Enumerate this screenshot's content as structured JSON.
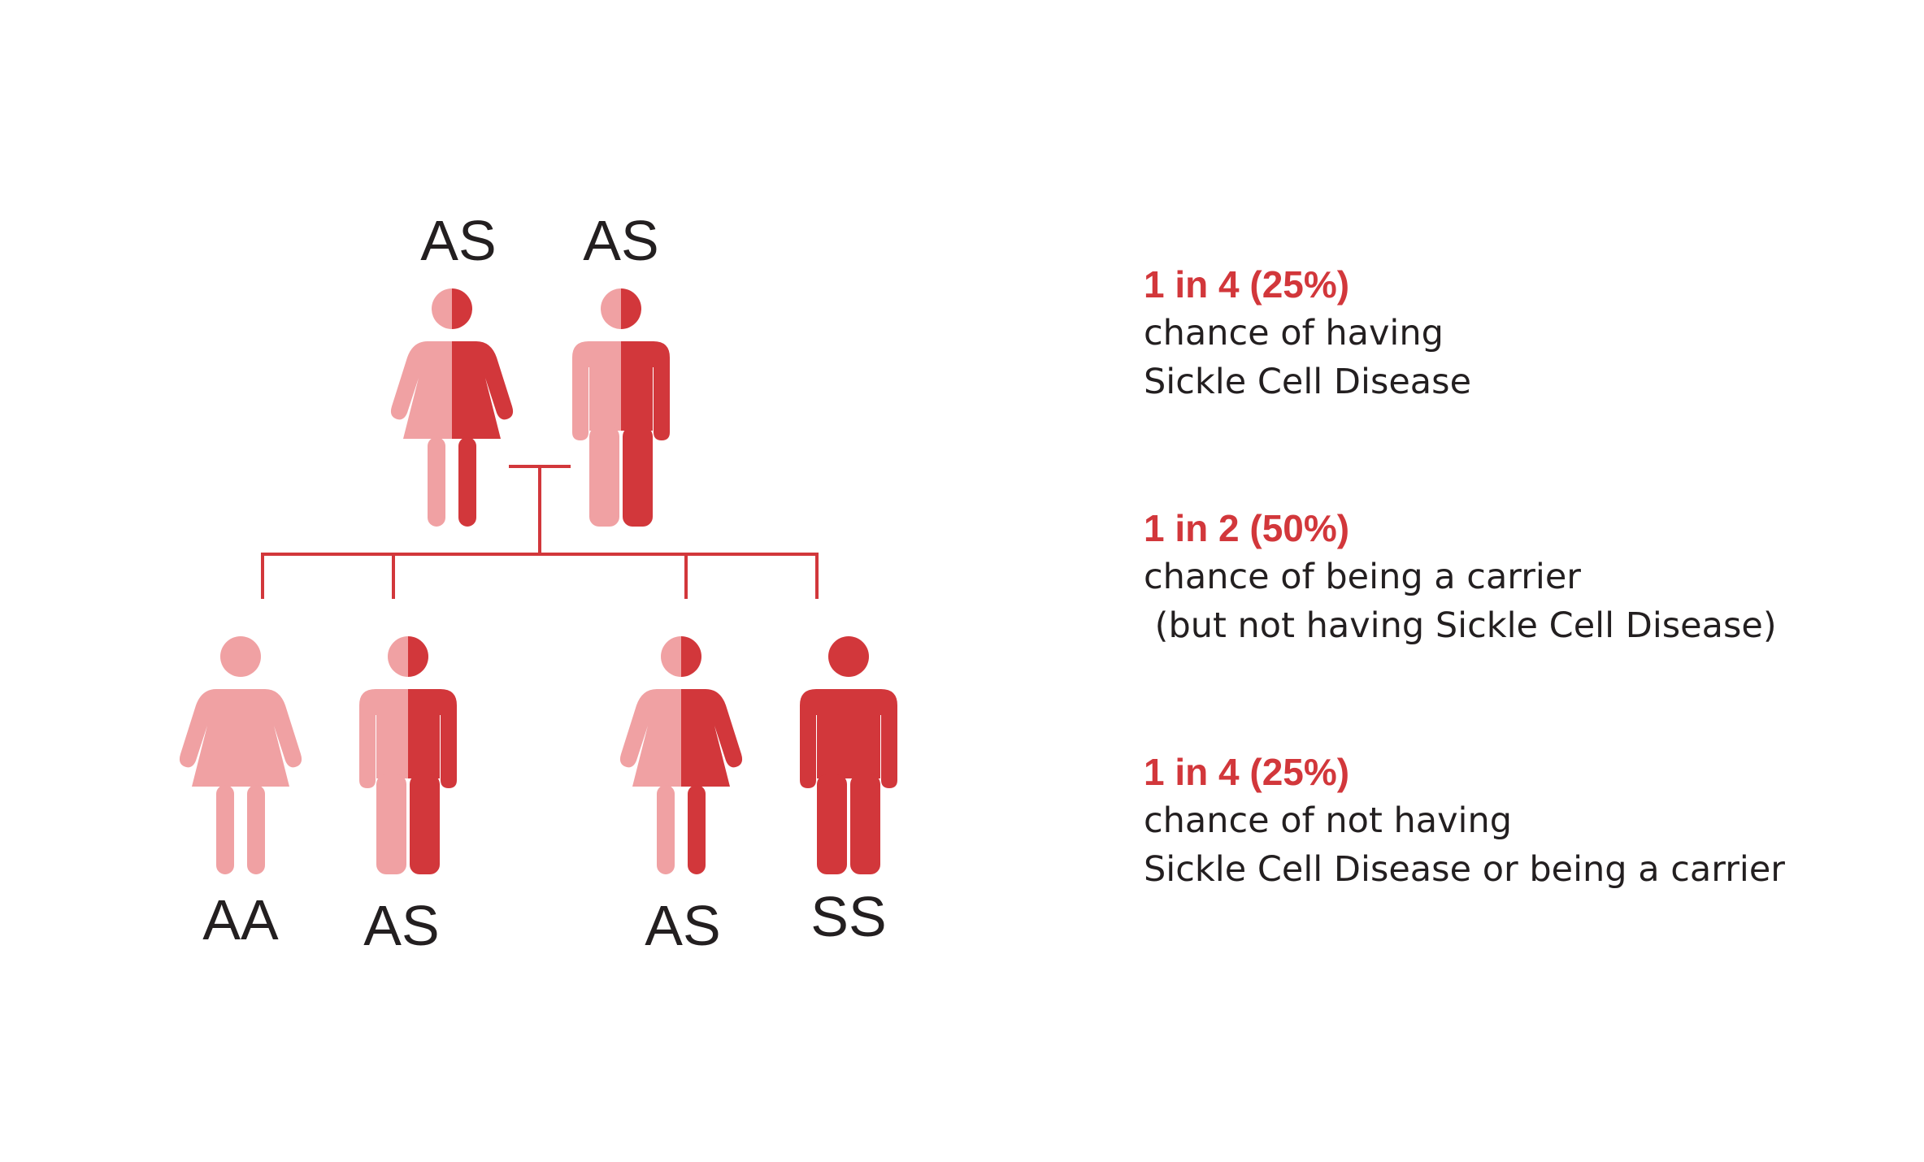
{
  "colors": {
    "light": "#f0a1a3",
    "dark": "#d2373b",
    "line": "#d2373b",
    "text": "#231f20",
    "highlight": "#d2373b"
  },
  "parents": [
    {
      "genotype": "AS",
      "sex": "female",
      "fill": "half"
    },
    {
      "genotype": "AS",
      "sex": "male",
      "fill": "half"
    }
  ],
  "children": [
    {
      "genotype": "AA",
      "sex": "female",
      "fill": "light"
    },
    {
      "genotype": "AS",
      "sex": "male",
      "fill": "half"
    },
    {
      "genotype": "AS",
      "sex": "female",
      "fill": "half"
    },
    {
      "genotype": "SS",
      "sex": "male",
      "fill": "dark"
    }
  ],
  "stats": [
    {
      "headline": "1 in 4 (25%)",
      "line1": "chance of having",
      "line2": "Sickle Cell Disease"
    },
    {
      "headline": "1 in 2 (50%)",
      "line1": "chance of being a carrier",
      "line2": " (but not having Sickle Cell Disease)"
    },
    {
      "headline": "1 in 4 (25%)",
      "line1": "chance of not having",
      "line2": "Sickle Cell Disease or being a carrier"
    }
  ]
}
